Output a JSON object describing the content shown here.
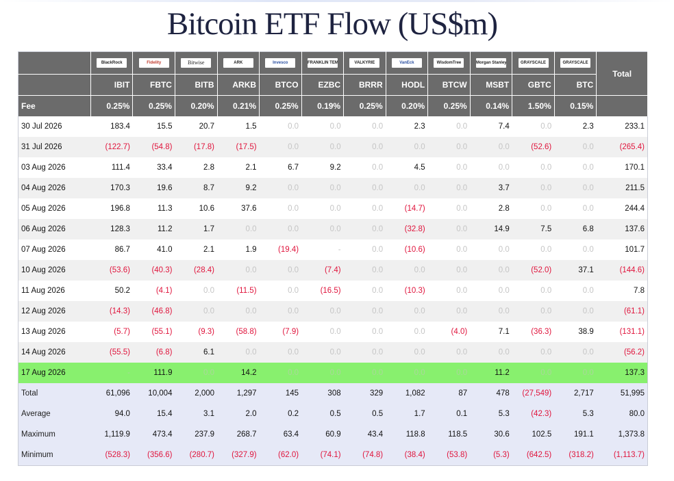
{
  "title": "Bitcoin ETF Flow (US$m)",
  "header": {
    "total_label": "Total",
    "fee_label": "Fee",
    "providers": [
      {
        "logo": "BlackRock",
        "ticker": "IBIT",
        "fee": "0.25%"
      },
      {
        "logo": "Fidelity",
        "ticker": "FBTC",
        "fee": "0.25%"
      },
      {
        "logo": "Bitwise",
        "ticker": "BITB",
        "fee": "0.20%"
      },
      {
        "logo": "ARK",
        "ticker": "ARKB",
        "fee": "0.21%"
      },
      {
        "logo": "Invesco",
        "ticker": "BTCO",
        "fee": "0.25%"
      },
      {
        "logo": "FRANKLIN TEMPLETON",
        "ticker": "EZBC",
        "fee": "0.19%"
      },
      {
        "logo": "VALKYRIE",
        "ticker": "BRRR",
        "fee": "0.25%"
      },
      {
        "logo": "VanEck",
        "ticker": "HODL",
        "fee": "0.20%"
      },
      {
        "logo": "WisdomTree",
        "ticker": "BTCW",
        "fee": "0.25%"
      },
      {
        "logo": "Morgan Stanley",
        "ticker": "MSBT",
        "fee": "0.14%"
      },
      {
        "logo": "GRAYSCALE",
        "ticker": "GBTC",
        "fee": "1.50%"
      },
      {
        "logo": "GRAYSCALE",
        "ticker": "BTC",
        "fee": "0.15%"
      }
    ]
  },
  "rows": [
    {
      "date": "30 Jul 2026",
      "values": [
        "183.4",
        "15.5",
        "20.7",
        "1.5",
        "0.0",
        "0.0",
        "0.0",
        "2.3",
        "0.0",
        "7.4",
        "0.0",
        "2.3"
      ],
      "total": "233.1"
    },
    {
      "date": "31 Jul 2026",
      "values": [
        "(122.7)",
        "(54.8)",
        "(17.8)",
        "(17.5)",
        "0.0",
        "0.0",
        "0.0",
        "0.0",
        "0.0",
        "0.0",
        "(52.6)",
        "0.0"
      ],
      "total": "(265.4)"
    },
    {
      "date": "03 Aug 2026",
      "values": [
        "111.4",
        "33.4",
        "2.8",
        "2.1",
        "6.7",
        "9.2",
        "0.0",
        "4.5",
        "0.0",
        "0.0",
        "0.0",
        "0.0"
      ],
      "total": "170.1"
    },
    {
      "date": "04 Aug 2026",
      "values": [
        "170.3",
        "19.6",
        "8.7",
        "9.2",
        "0.0",
        "0.0",
        "0.0",
        "0.0",
        "0.0",
        "3.7",
        "0.0",
        "0.0"
      ],
      "total": "211.5"
    },
    {
      "date": "05 Aug 2026",
      "values": [
        "196.8",
        "11.3",
        "10.6",
        "37.6",
        "0.0",
        "0.0",
        "0.0",
        "(14.7)",
        "0.0",
        "2.8",
        "0.0",
        "0.0"
      ],
      "total": "244.4"
    },
    {
      "date": "06 Aug 2026",
      "values": [
        "128.3",
        "11.2",
        "1.7",
        "0.0",
        "0.0",
        "0.0",
        "0.0",
        "(32.8)",
        "0.0",
        "14.9",
        "7.5",
        "6.8"
      ],
      "total": "137.6"
    },
    {
      "date": "07 Aug 2026",
      "values": [
        "86.7",
        "41.0",
        "2.1",
        "1.9",
        "(19.4)",
        "-",
        "0.0",
        "(10.6)",
        "0.0",
        "0.0",
        "0.0",
        "0.0"
      ],
      "total": "101.7"
    },
    {
      "date": "10 Aug 2026",
      "values": [
        "(53.6)",
        "(40.3)",
        "(28.4)",
        "0.0",
        "0.0",
        "(7.4)",
        "0.0",
        "0.0",
        "0.0",
        "0.0",
        "(52.0)",
        "37.1"
      ],
      "total": "(144.6)"
    },
    {
      "date": "11 Aug 2026",
      "values": [
        "50.2",
        "(4.1)",
        "0.0",
        "(11.5)",
        "0.0",
        "(16.5)",
        "0.0",
        "(10.3)",
        "0.0",
        "0.0",
        "0.0",
        "0.0"
      ],
      "total": "7.8"
    },
    {
      "date": "12 Aug 2026",
      "values": [
        "(14.3)",
        "(46.8)",
        "0.0",
        "0.0",
        "0.0",
        "0.0",
        "0.0",
        "0.0",
        "0.0",
        "0.0",
        "0.0",
        "0.0"
      ],
      "total": "(61.1)"
    },
    {
      "date": "13 Aug 2026",
      "values": [
        "(5.7)",
        "(55.1)",
        "(9.3)",
        "(58.8)",
        "(7.9)",
        "0.0",
        "0.0",
        "0.0",
        "(4.0)",
        "7.1",
        "(36.3)",
        "38.9"
      ],
      "total": "(131.1)"
    },
    {
      "date": "14 Aug 2026",
      "values": [
        "(55.5)",
        "(6.8)",
        "6.1",
        "0.0",
        "0.0",
        "0.0",
        "0.0",
        "0.0",
        "0.0",
        "0.0",
        "0.0",
        "0.0"
      ],
      "total": "(56.2)"
    },
    {
      "date": "17 Aug 2026",
      "values": [
        "-",
        "111.9",
        "0.0",
        "14.2",
        "0.0",
        "0.0",
        "0.0",
        "0.0",
        "0.0",
        "11.2",
        "0.0",
        "0.0"
      ],
      "total": "137.3",
      "highlight": true
    }
  ],
  "summary": [
    {
      "label": "Total",
      "values": [
        "61,096",
        "10,004",
        "2,000",
        "1,297",
        "145",
        "308",
        "329",
        "1,082",
        "87",
        "478",
        "(27,549)",
        "2,717"
      ],
      "total": "51,995"
    },
    {
      "label": "Average",
      "values": [
        "94.0",
        "15.4",
        "3.1",
        "2.0",
        "0.2",
        "0.5",
        "0.5",
        "1.7",
        "0.1",
        "5.3",
        "(42.3)",
        "5.3"
      ],
      "total": "80.0"
    },
    {
      "label": "Maximum",
      "values": [
        "1,119.9",
        "473.4",
        "237.9",
        "268.7",
        "63.4",
        "60.9",
        "43.4",
        "118.8",
        "118.5",
        "30.6",
        "102.5",
        "191.1"
      ],
      "total": "1,373.8"
    },
    {
      "label": "Minimum",
      "values": [
        "(528.3)",
        "(356.6)",
        "(280.7)",
        "(327.9)",
        "(62.0)",
        "(74.1)",
        "(74.8)",
        "(38.4)",
        "(53.8)",
        "(5.3)",
        "(642.5)",
        "(318.2)"
      ],
      "total": "(1,113.7)"
    }
  ],
  "colors": {
    "header_bg": "#6b6b6b",
    "negative": "#e0143c",
    "zero": "#c5c5c5",
    "highlight_row": "#88f06e",
    "summary_bg": "#e6e9f7"
  }
}
